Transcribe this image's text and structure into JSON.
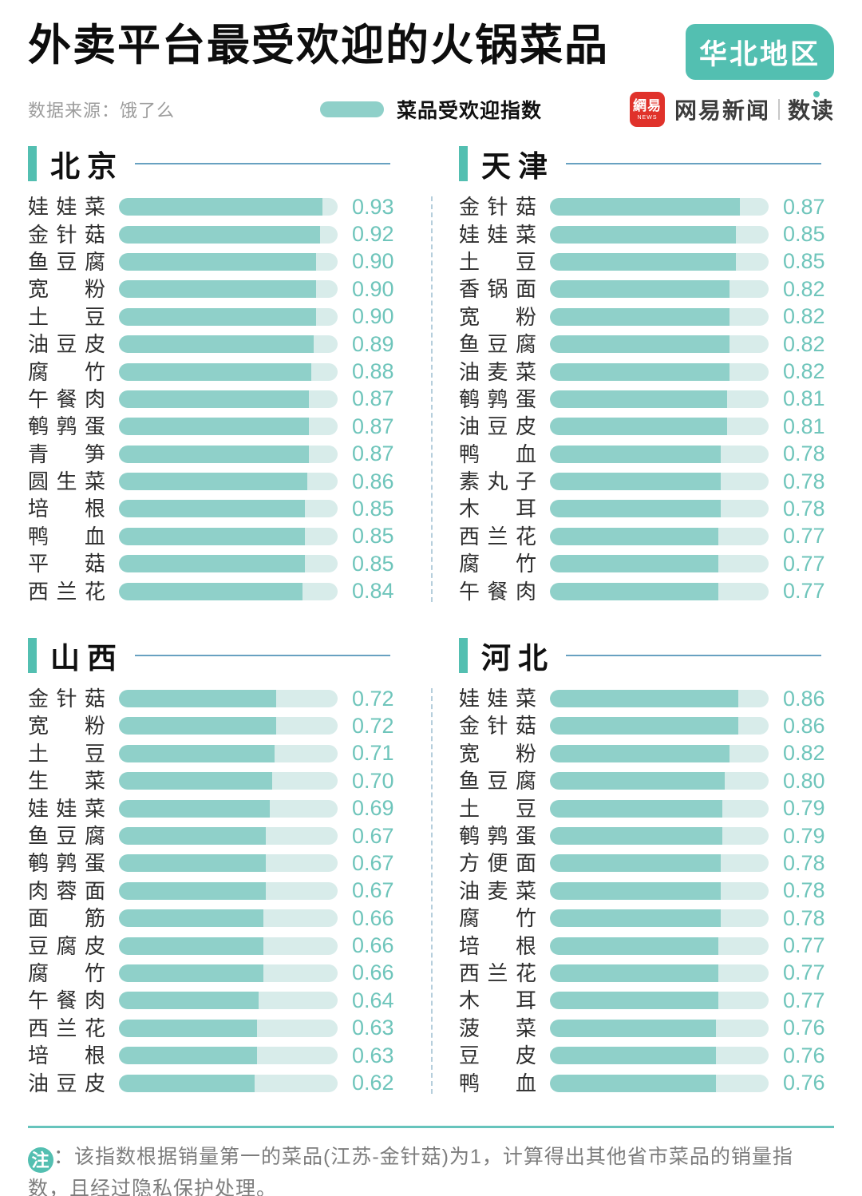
{
  "header": {
    "title": "外卖平台最受欢迎的火锅菜品",
    "region_badge": "华北地区",
    "source": "数据来源：饿了么",
    "legend_label": "菜品受欢迎指数",
    "brand": {
      "logo_cn": "網易",
      "logo_en": "NEWS",
      "name": "网易新闻",
      "product": "数读"
    }
  },
  "colors": {
    "page-bg": "#ffffff",
    "title-color": "#0d0d0d",
    "teal-strong": "#53bfb1",
    "teal-fill": "#8fd0c9",
    "teal-track": "#d8ecea",
    "teal-text": "#6fc5bb",
    "headline-blue": "#68a1c1",
    "divider-color": "#b5cedc",
    "footer-line": "#66c4bc",
    "note-text": "#7d7d7d",
    "muted-text": "#9c9c9c",
    "brand-red": "#e0322b"
  },
  "chart_data": [
    {
      "type": "bar",
      "title": "北京",
      "orientation": "horizontal",
      "value_range": [
        0,
        1
      ],
      "legend": "菜品受欢迎指数",
      "categories": [
        "娃娃菜",
        "金针菇",
        "鱼豆腐",
        "宽粉",
        "土豆",
        "油豆皮",
        "腐竹",
        "午餐肉",
        "鹌鹑蛋",
        "青笋",
        "圆生菜",
        "培根",
        "鸭血",
        "平菇",
        "西兰花"
      ],
      "values": [
        0.93,
        0.92,
        0.9,
        0.9,
        0.9,
        0.89,
        0.88,
        0.87,
        0.87,
        0.87,
        0.86,
        0.85,
        0.85,
        0.85,
        0.84
      ]
    },
    {
      "type": "bar",
      "title": "天津",
      "orientation": "horizontal",
      "value_range": [
        0,
        1
      ],
      "legend": "菜品受欢迎指数",
      "categories": [
        "金针菇",
        "娃娃菜",
        "土豆",
        "香锅面",
        "宽粉",
        "鱼豆腐",
        "油麦菜",
        "鹌鹑蛋",
        "油豆皮",
        "鸭血",
        "素丸子",
        "木耳",
        "西兰花",
        "腐竹",
        "午餐肉"
      ],
      "values": [
        0.87,
        0.85,
        0.85,
        0.82,
        0.82,
        0.82,
        0.82,
        0.81,
        0.81,
        0.78,
        0.78,
        0.78,
        0.77,
        0.77,
        0.77
      ]
    },
    {
      "type": "bar",
      "title": "山西",
      "orientation": "horizontal",
      "value_range": [
        0,
        1
      ],
      "legend": "菜品受欢迎指数",
      "categories": [
        "金针菇",
        "宽粉",
        "土豆",
        "生菜",
        "娃娃菜",
        "鱼豆腐",
        "鹌鹑蛋",
        "肉蓉面",
        "面筋",
        "豆腐皮",
        "腐竹",
        "午餐肉",
        "西兰花",
        "培根",
        "油豆皮"
      ],
      "values": [
        0.72,
        0.72,
        0.71,
        0.7,
        0.69,
        0.67,
        0.67,
        0.67,
        0.66,
        0.66,
        0.66,
        0.64,
        0.63,
        0.63,
        0.62
      ]
    },
    {
      "type": "bar",
      "title": "河北",
      "orientation": "horizontal",
      "value_range": [
        0,
        1
      ],
      "legend": "菜品受欢迎指数",
      "categories": [
        "娃娃菜",
        "金针菇",
        "宽粉",
        "鱼豆腐",
        "土豆",
        "鹌鹑蛋",
        "方便面",
        "油麦菜",
        "腐竹",
        "培根",
        "西兰花",
        "木耳",
        "菠菜",
        "豆皮",
        "鸭血"
      ],
      "values": [
        0.86,
        0.86,
        0.82,
        0.8,
        0.79,
        0.79,
        0.78,
        0.78,
        0.78,
        0.77,
        0.77,
        0.77,
        0.76,
        0.76,
        0.76
      ]
    }
  ],
  "footer": {
    "badge": "注",
    "text": "：该指数根据销量第一的菜品(江苏-金针菇)为1，计算得出其他省市菜品的销量指数，且经过隐私保护处理。"
  }
}
